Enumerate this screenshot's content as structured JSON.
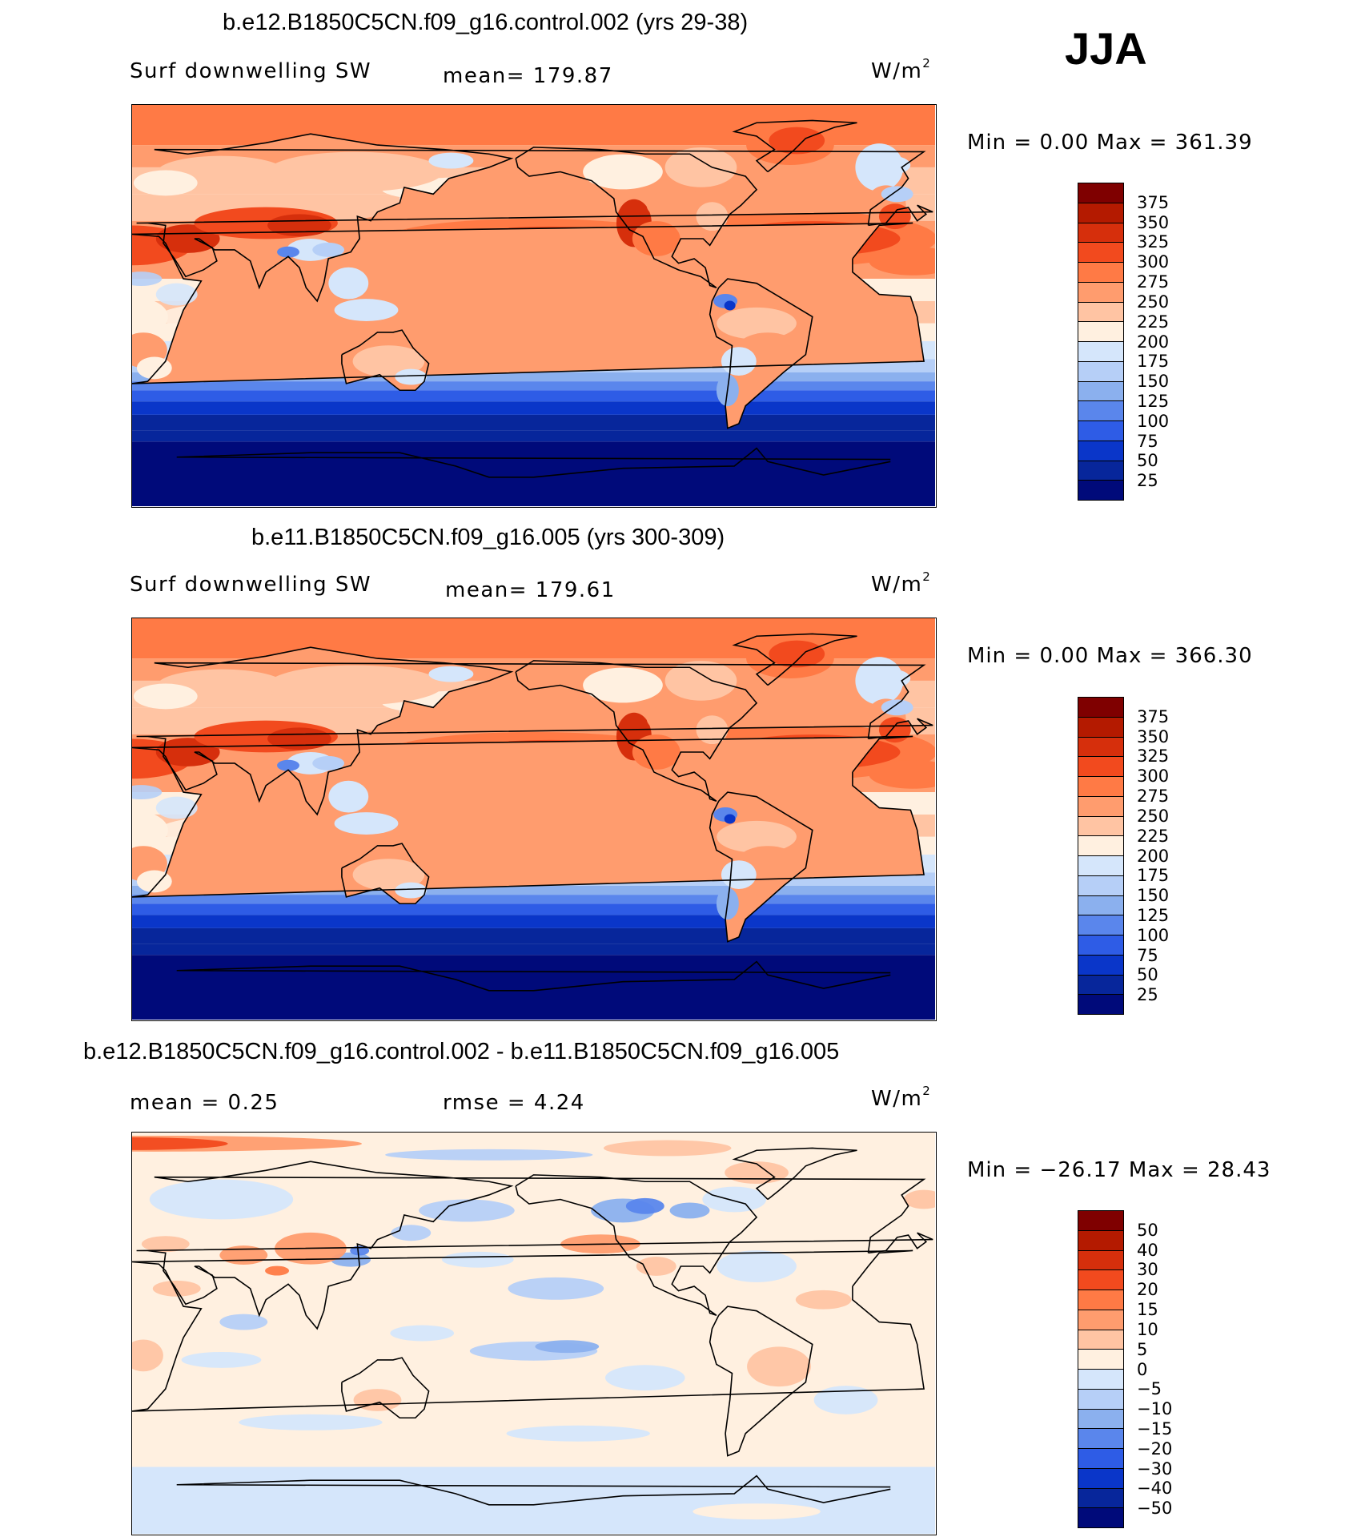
{
  "season": "JJA",
  "panels": [
    {
      "title": "b.e12.B1850C5CN.f09_g16.control.002 (yrs 29-38)",
      "left_label": "Surf  downwelling  SW",
      "middle_label": "mean=  179.87",
      "units_base": "W/m",
      "units_exp": "2",
      "minmax": "Min  =      0.00  Max  =  361.39",
      "legend_levels": [
        "375",
        "350",
        "325",
        "300",
        "275",
        "250",
        "225",
        "200",
        "175",
        "150",
        "125",
        "100",
        "75",
        "50",
        "25"
      ],
      "legend_colors": [
        "#7f0000",
        "#b41a00",
        "#d62f0c",
        "#f24a1e",
        "#ff7a45",
        "#ff9c6e",
        "#ffc4a3",
        "#fff0e0",
        "#d5e6fb",
        "#b6cff7",
        "#8bb0ee",
        "#5a86ec",
        "#2e5ce6",
        "#0a36c9",
        "#07269b",
        "#000a7a"
      ]
    },
    {
      "title": "b.e11.B1850C5CN.f09_g16.005 (yrs 300-309)",
      "left_label": "Surf  downwelling  SW",
      "middle_label": "mean=  179.61",
      "units_base": "W/m",
      "units_exp": "2",
      "minmax": "Min  =      0.00  Max  =  366.30",
      "legend_levels": [
        "375",
        "350",
        "325",
        "300",
        "275",
        "250",
        "225",
        "200",
        "175",
        "150",
        "125",
        "100",
        "75",
        "50",
        "25"
      ],
      "legend_colors": [
        "#7f0000",
        "#b41a00",
        "#d62f0c",
        "#f24a1e",
        "#ff7a45",
        "#ff9c6e",
        "#ffc4a3",
        "#fff0e0",
        "#d5e6fb",
        "#b6cff7",
        "#8bb0ee",
        "#5a86ec",
        "#2e5ce6",
        "#0a36c9",
        "#07269b",
        "#000a7a"
      ]
    },
    {
      "title": "b.e12.B1850C5CN.f09_g16.control.002 - b.e11.B1850C5CN.f09_g16.005",
      "left_label": "mean  =     0.25",
      "middle_label": "rmse  =      4.24",
      "units_base": "W/m",
      "units_exp": "2",
      "minmax": "Min  =  −26.17  Max  =    28.43",
      "legend_levels": [
        "50",
        "40",
        "30",
        "20",
        "15",
        "10",
        "5",
        "0",
        "−5",
        "−10",
        "−15",
        "−20",
        "−30",
        "−40",
        "−50"
      ],
      "legend_colors": [
        "#7f0000",
        "#b41a00",
        "#d62f0c",
        "#f24a1e",
        "#ff7a45",
        "#ff9c6e",
        "#ffc4a3",
        "#fff0e0",
        "#d5e6fb",
        "#b6cff7",
        "#8bb0ee",
        "#5a86ec",
        "#2e5ce6",
        "#0a36c9",
        "#07269b",
        "#000a7a"
      ]
    }
  ]
}
